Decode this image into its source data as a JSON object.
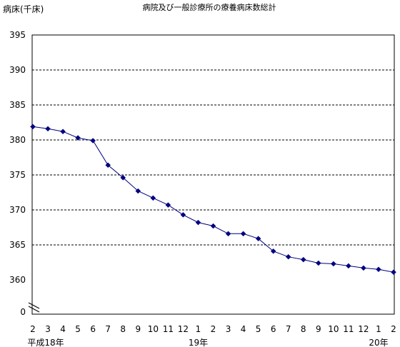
{
  "chart_data": {
    "type": "line",
    "title": "病院及び一般診療所の療養病床数総計",
    "y_unit_label": "病床(千床)",
    "y_axis": {
      "tick_labels": [
        "0",
        "360",
        "365",
        "370",
        "375",
        "380",
        "385",
        "390",
        "395"
      ],
      "range_shown": [
        360,
        395
      ],
      "broken_axis": true,
      "break_value": 0,
      "gridlines": "dashed"
    },
    "x_axis": {
      "tick_labels": [
        "2",
        "3",
        "4",
        "5",
        "6",
        "7",
        "8",
        "9",
        "10",
        "11",
        "12",
        "1",
        "2",
        "3",
        "4",
        "5",
        "6",
        "7",
        "8",
        "9",
        "10",
        "11",
        "12",
        "1",
        "2"
      ],
      "era_labels": [
        {
          "text": "平成18年",
          "at_index": 0
        },
        {
          "text": "19年",
          "at_index": 11
        },
        {
          "text": "20年",
          "at_index": 23
        }
      ]
    },
    "series": [
      {
        "color": "#000080",
        "marker": "diamond",
        "values": [
          381.9,
          381.6,
          381.2,
          380.3,
          379.9,
          376.4,
          374.6,
          372.7,
          371.7,
          370.7,
          369.3,
          368.2,
          367.7,
          366.6,
          366.6,
          365.9,
          364.1,
          363.3,
          362.9,
          362.4,
          362.3,
          362.0,
          361.7,
          361.5,
          361.1
        ]
      }
    ]
  }
}
